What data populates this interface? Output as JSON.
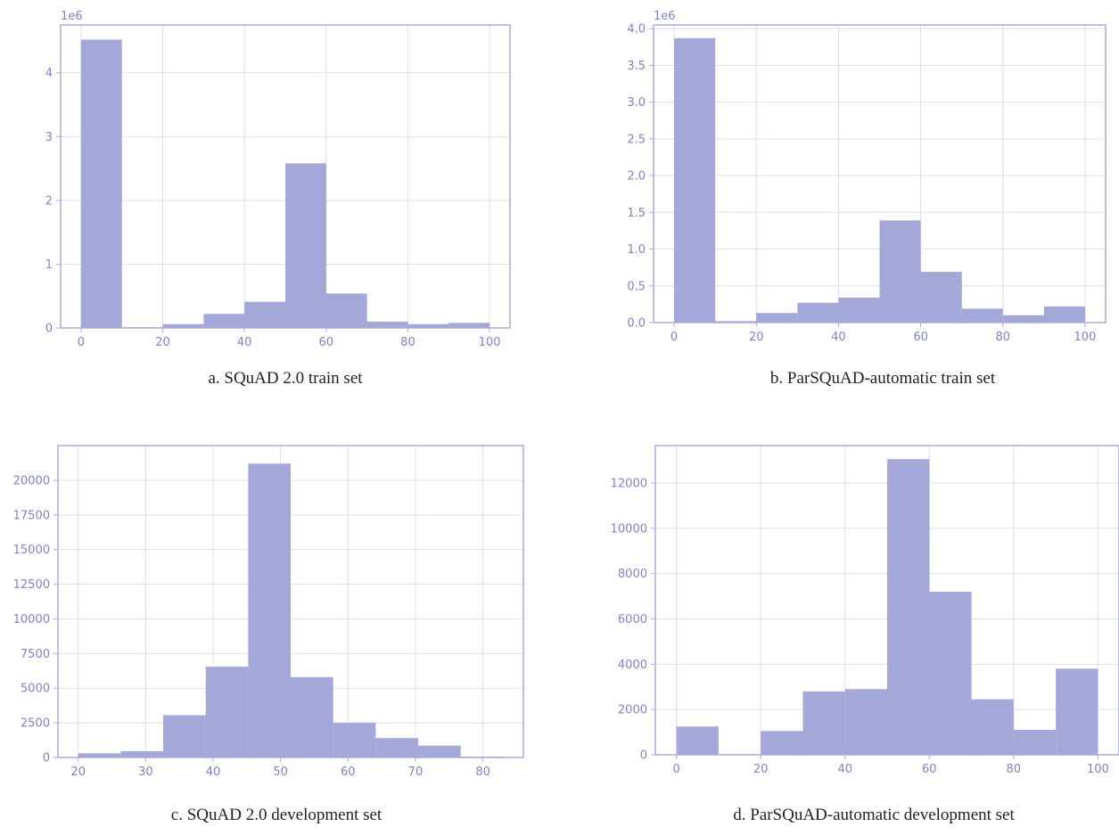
{
  "colors": {
    "bar": "#a3a8d8",
    "axis": "#a8acdc",
    "grid": "#dcdef2",
    "tick_text": "#7f84c8"
  },
  "chart_data": [
    {
      "type": "bar",
      "caption": "a. SQuAD 2.0 train set",
      "exponent_label": "1e6",
      "bin_edges": [
        0,
        10,
        20,
        30,
        40,
        50,
        60,
        70,
        80,
        90,
        100
      ],
      "values": [
        4.52,
        0.01,
        0.06,
        0.22,
        0.41,
        2.58,
        0.54,
        0.1,
        0.06,
        0.08
      ],
      "xlim": [
        -5,
        105
      ],
      "ylim": [
        0,
        4.75
      ],
      "xticks": [
        0,
        20,
        40,
        60,
        80,
        100
      ],
      "yticks": [
        0,
        1,
        2,
        3,
        4
      ],
      "ytick_labels": [
        "0",
        "1",
        "2",
        "3",
        "4"
      ],
      "grid": true
    },
    {
      "type": "bar",
      "caption": "b. ParSQuAD-automatic train set",
      "exponent_label": "1e6",
      "bin_edges": [
        0,
        10,
        20,
        30,
        40,
        50,
        60,
        70,
        80,
        90,
        100
      ],
      "values": [
        3.87,
        0.02,
        0.13,
        0.27,
        0.34,
        1.39,
        0.69,
        0.19,
        0.1,
        0.22
      ],
      "xlim": [
        -5,
        105
      ],
      "ylim": [
        0,
        4.05
      ],
      "xticks": [
        0,
        20,
        40,
        60,
        80,
        100
      ],
      "yticks": [
        0,
        0.5,
        1,
        1.5,
        2,
        2.5,
        3,
        3.5,
        4
      ],
      "ytick_labels": [
        "0.0",
        "0.5",
        "1.0",
        "1.5",
        "2.0",
        "2.5",
        "3.0",
        "3.5",
        "4.0"
      ],
      "grid": true
    },
    {
      "type": "bar",
      "caption": "c. SQuAD 2.0 development set",
      "exponent_label": "",
      "bin_edges": [
        20,
        26.3,
        32.6,
        38.9,
        45.2,
        51.5,
        57.8,
        64.1,
        70.4,
        76.7,
        83
      ],
      "values": [
        300,
        450,
        3050,
        6550,
        21200,
        5800,
        2500,
        1400,
        850,
        60
      ],
      "xlim": [
        17,
        86
      ],
      "ylim": [
        0,
        22500
      ],
      "xticks": [
        20,
        30,
        40,
        50,
        60,
        70,
        80
      ],
      "yticks": [
        0,
        2500,
        5000,
        7500,
        10000,
        12500,
        15000,
        17500,
        20000
      ],
      "ytick_labels": [
        "0",
        "2500",
        "5000",
        "7500",
        "10000",
        "12500",
        "15000",
        "17500",
        "20000"
      ],
      "grid": true
    },
    {
      "type": "bar",
      "caption": "d. ParSQuAD-automatic development set",
      "exponent_label": "",
      "bin_edges": [
        0,
        10,
        20,
        30,
        40,
        50,
        60,
        70,
        80,
        90,
        100
      ],
      "values": [
        1250,
        0,
        1050,
        2800,
        2900,
        13050,
        7200,
        2450,
        1100,
        3800
      ],
      "xlim": [
        -5,
        105
      ],
      "ylim": [
        0,
        13650
      ],
      "xticks": [
        0,
        20,
        40,
        60,
        80,
        100
      ],
      "yticks": [
        0,
        2000,
        4000,
        6000,
        8000,
        10000,
        12000
      ],
      "ytick_labels": [
        "0",
        "2000",
        "4000",
        "6000",
        "8000",
        "10000",
        "12000"
      ],
      "grid": true
    }
  ]
}
